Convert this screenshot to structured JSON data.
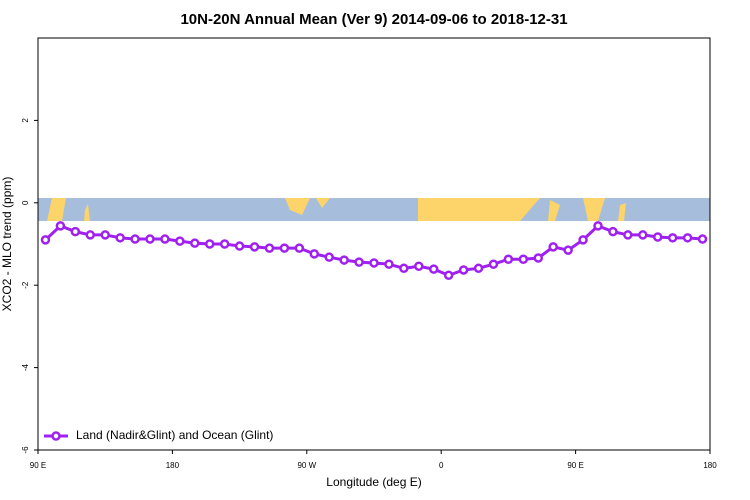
{
  "chart_data": {
    "type": "line",
    "title": "10N-20N Annual Mean (Ver 9)   2014-09-06 to 2018-12-31",
    "x_label": "Longitude (deg E)",
    "y_label": "XCO2 - MLO trend (ppm)",
    "xlim": [
      90,
      540
    ],
    "xticks": [
      {
        "value": 90,
        "label": "90 E"
      },
      180,
      {
        "value": 270,
        "label": "90 W"
      },
      {
        "value": 360,
        "label": "0"
      },
      {
        "value": 450,
        "label": "90 E"
      },
      {
        "value": 540,
        "label": "180"
      }
    ],
    "ylim": [
      -6,
      4
    ],
    "yticks": [
      -6,
      -4,
      -2,
      0,
      2
    ],
    "legend_position": "bottom-left",
    "x": [
      95,
      105,
      115,
      125,
      135,
      145,
      155,
      165,
      175,
      185,
      195,
      205,
      215,
      225,
      235,
      245,
      255,
      265,
      275,
      285,
      295,
      305,
      315,
      325,
      335,
      345,
      355,
      365,
      375,
      385,
      395,
      405,
      415,
      425,
      435,
      445,
      455,
      465,
      475,
      485,
      495,
      505,
      515,
      525,
      535
    ],
    "series": [
      {
        "name": "Land (Nadir&Glint) and Ocean (Glint)",
        "color": "#a020f0",
        "values": [
          -0.9,
          -0.56,
          -0.7,
          -0.78,
          -0.78,
          -0.85,
          -0.88,
          -0.88,
          -0.88,
          -0.93,
          -0.98,
          -1.0,
          -1.0,
          -1.05,
          -1.07,
          -1.1,
          -1.1,
          -1.1,
          -1.24,
          -1.32,
          -1.39,
          -1.44,
          -1.46,
          -1.49,
          -1.59,
          -1.54,
          -1.61,
          -1.76,
          -1.63,
          -1.59,
          -1.49,
          -1.37,
          -1.37,
          -1.34,
          -1.07,
          -1.15,
          -0.9,
          -0.56,
          -0.7,
          -0.78,
          -0.78,
          -0.83,
          -0.85,
          -0.85,
          -0.88
        ]
      }
    ]
  }
}
